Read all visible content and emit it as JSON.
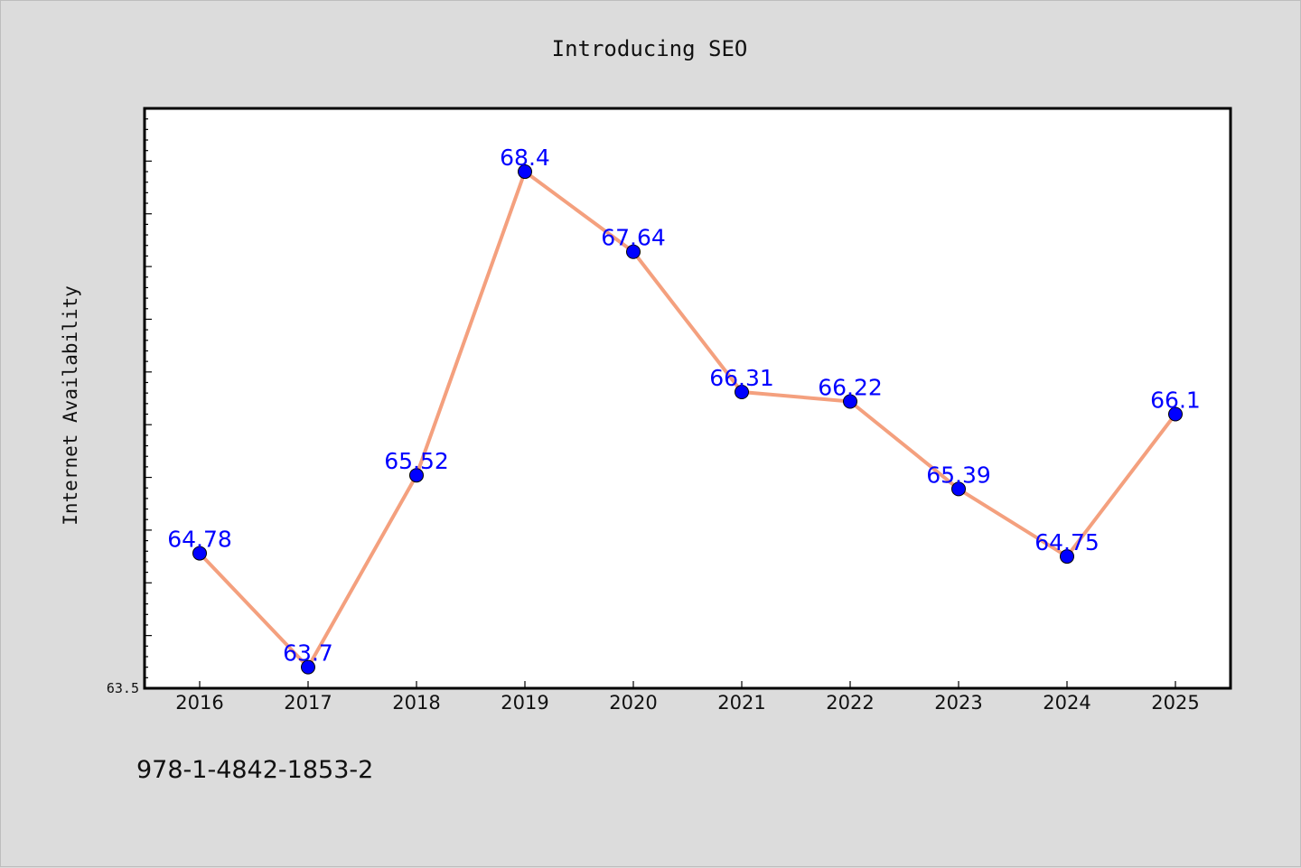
{
  "chart_data": {
    "type": "line",
    "title": "Introducing SEO",
    "ylabel": "Internet Availability",
    "xlabel": "",
    "categories": [
      "2016",
      "2017",
      "2018",
      "2019",
      "2020",
      "2021",
      "2022",
      "2023",
      "2024",
      "2025"
    ],
    "series": [
      {
        "values": [
          64.78,
          63.7,
          65.52,
          68.4,
          67.64,
          66.31,
          66.22,
          65.39,
          64.75,
          66.1
        ]
      }
    ],
    "ylim": [
      63.5,
      69.0
    ],
    "y_tick_labels": [
      "63.5"
    ],
    "data_labels": [
      "64.78",
      "63.7",
      "65.52",
      "68.4",
      "67.64",
      "66.31",
      "66.22",
      "65.39",
      "64.75",
      "66.1"
    ],
    "grid": false,
    "legend": "none",
    "colors": {
      "line": "#f4a07e",
      "marker": "#0000ff",
      "marker_edge": "#000000",
      "data_label": "#0000ff",
      "plot_background": "#ffffff",
      "figure_background": "#dcdcdc"
    }
  },
  "footer": {
    "isbn": "978-1-4842-1853-2"
  }
}
